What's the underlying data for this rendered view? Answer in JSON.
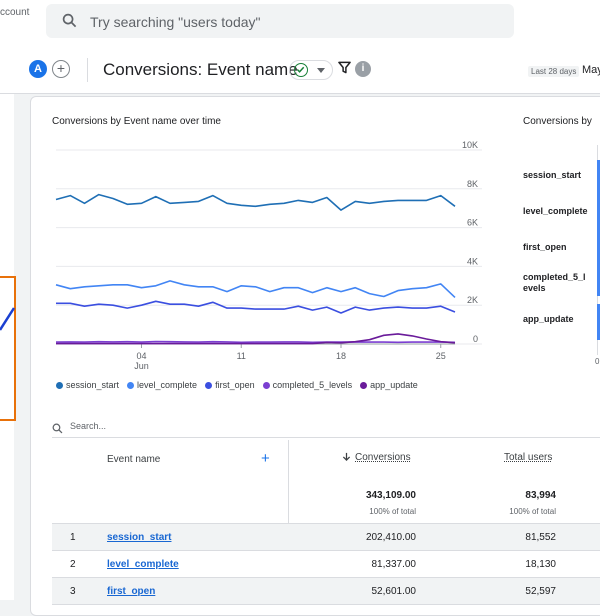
{
  "topbar": {
    "account_text": "ccount",
    "search_placeholder": "Try searching \"users today\""
  },
  "header": {
    "avatar_letter": "A",
    "add_comparison": "+",
    "title": "Conversions: Event name",
    "info_letter": "i",
    "date_range_label": "Last 28 days",
    "date_range_value": "May"
  },
  "colors": {
    "session_start": "#1f6fb5",
    "level_complete": "#4285f4",
    "first_open": "#3b4fe0",
    "completed_5_levels": "#7b3fd1",
    "app_update": "#6a1b9a",
    "accent": "#1a73e8",
    "highlight_box": "#e8710a"
  },
  "chart_data": [
    {
      "type": "line",
      "title": "Conversions by Event name over time",
      "x": [
        "May 29",
        "May 30",
        "May 31",
        "Jun 01",
        "Jun 02",
        "Jun 03",
        "Jun 04",
        "Jun 05",
        "Jun 06",
        "Jun 07",
        "Jun 08",
        "Jun 09",
        "Jun 10",
        "Jun 11",
        "Jun 12",
        "Jun 13",
        "Jun 14",
        "Jun 15",
        "Jun 16",
        "Jun 17",
        "Jun 18",
        "Jun 19",
        "Jun 20",
        "Jun 21",
        "Jun 22",
        "Jun 23",
        "Jun 24",
        "Jun 25",
        "Jun 26"
      ],
      "x_tick_labels": [
        {
          "day": "04",
          "month": "Jun"
        },
        {
          "day": "11",
          "month": ""
        },
        {
          "day": "18",
          "month": ""
        },
        {
          "day": "25",
          "month": ""
        }
      ],
      "y_tick_labels": [
        "10K",
        "8K",
        "6K",
        "4K",
        "2K",
        "0"
      ],
      "ylim": [
        0,
        10000
      ],
      "grid": true,
      "legend_position": "bottom",
      "series": [
        {
          "name": "session_start",
          "values": [
            7450,
            7650,
            7250,
            7700,
            7500,
            7200,
            7250,
            7600,
            7250,
            7300,
            7350,
            7650,
            7250,
            7150,
            7100,
            7200,
            7250,
            7400,
            7300,
            7550,
            6900,
            7350,
            7250,
            7350,
            7400,
            7400,
            7400,
            7650,
            7100
          ]
        },
        {
          "name": "level_complete",
          "values": [
            3050,
            2850,
            2950,
            3000,
            3050,
            3050,
            2900,
            3000,
            3250,
            3050,
            2950,
            2950,
            2700,
            3000,
            2950,
            2700,
            2900,
            2900,
            2650,
            2900,
            2700,
            2900,
            2600,
            2450,
            2750,
            2850,
            2900,
            3100,
            2400
          ]
        },
        {
          "name": "first_open",
          "values": [
            2100,
            2100,
            1950,
            2050,
            2000,
            1850,
            2000,
            2200,
            2050,
            2050,
            1950,
            2150,
            1850,
            1850,
            1800,
            1800,
            1800,
            1950,
            1750,
            1900,
            1600,
            1900,
            1750,
            1850,
            1900,
            1850,
            1850,
            1950,
            1650
          ]
        },
        {
          "name": "completed_5_levels",
          "values": [
            100,
            110,
            100,
            120,
            110,
            120,
            100,
            130,
            120,
            110,
            100,
            120,
            110,
            90,
            100,
            100,
            110,
            110,
            90,
            100,
            100,
            110,
            100,
            100,
            90,
            100,
            100,
            100,
            90
          ]
        },
        {
          "name": "app_update",
          "values": [
            20,
            20,
            20,
            20,
            20,
            20,
            20,
            20,
            20,
            20,
            20,
            20,
            20,
            20,
            20,
            20,
            20,
            20,
            20,
            80,
            60,
            120,
            220,
            450,
            520,
            420,
            260,
            120,
            60
          ]
        }
      ]
    },
    {
      "type": "bar",
      "title": "Conversions by",
      "categories": [
        "session_start",
        "level_complete",
        "first_open",
        "completed_5_levels",
        "app_update"
      ],
      "category_labels": [
        "session_start",
        "level_complete",
        "first_open",
        "completed_5_l evels",
        "app_update"
      ],
      "x_tick_labels": [
        "0"
      ]
    }
  ],
  "table": {
    "search_placeholder": "Search...",
    "columns": {
      "event_name": "Event name",
      "add_dimension": "+",
      "conversions": "Conversions",
      "total_users": "Total users"
    },
    "totals": {
      "conversions": "343,109.00",
      "conversions_pct": "100% of total",
      "total_users": "83,994",
      "total_users_pct": "100% of total"
    },
    "rows": [
      {
        "rank": "1",
        "name": "session_start",
        "conversions": "202,410.00",
        "users": "81,552"
      },
      {
        "rank": "2",
        "name": "level_complete",
        "conversions": "81,337.00",
        "users": "18,130"
      },
      {
        "rank": "3",
        "name": "first_open",
        "conversions": "52,601.00",
        "users": "52,597"
      }
    ]
  }
}
